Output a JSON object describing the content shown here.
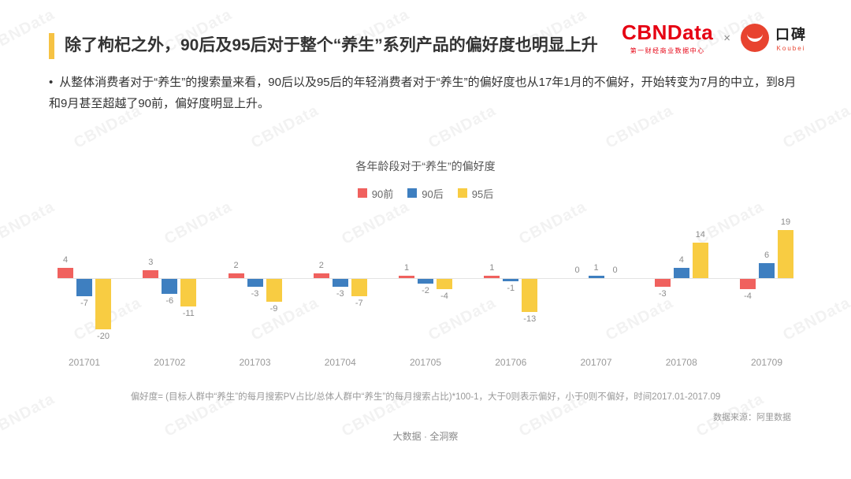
{
  "header": {
    "title": "除了枸杞之外，90后及95后对于整个“养生”系列产品的偏好度也明显上升",
    "brand": {
      "cbndata": "CBNData",
      "cbndata_subtitle": "第一财经商业数据中心",
      "separator": "×",
      "koubei": "口碑",
      "koubei_subtitle": "Koubei"
    }
  },
  "bullet": {
    "marker": "•",
    "text": "从整体消费者对于“养生”的搜索量来看，90后以及95后的年轻消费者对于“养生”的偏好度也从17年1月的不偏好，开始转变为7月的中立，到8月和9月甚至超越了90前，偏好度明显上升。"
  },
  "chart_data": {
    "type": "bar",
    "title": "各年龄段对于“养生”的偏好度",
    "categories": [
      "201701",
      "201702",
      "201703",
      "201704",
      "201705",
      "201706",
      "201707",
      "201708",
      "201709"
    ],
    "series": [
      {
        "name": "90前",
        "color": "#f0615e",
        "values": [
          4,
          3,
          2,
          2,
          1,
          1,
          0,
          -3,
          -4
        ]
      },
      {
        "name": "90后",
        "color": "#3e7fc0",
        "values": [
          -7,
          -6,
          -3,
          -3,
          -2,
          -1,
          1,
          4,
          6
        ]
      },
      {
        "name": "95后",
        "color": "#f8cc42",
        "values": [
          -20,
          -11,
          -9,
          -7,
          -4,
          -13,
          0,
          14,
          19
        ]
      }
    ],
    "ylim": [
      -20,
      19
    ],
    "grid": false,
    "legend_position": "top",
    "value_labels": true
  },
  "footnote": "偏好度= (目标人群中“养生”的每月搜索PV占比/总体人群中“养生”的每月搜索占比)*100-1，大于0则表示偏好，小于0则不偏好，时间2017.01-2017.09",
  "data_source": "数据来源：阿里数据",
  "footer": "大数据 · 全洞察",
  "watermark": "CBNData",
  "colors": {
    "accent_bar": "#f6c243",
    "brand_red": "#e60012",
    "koubei_red": "#e8432f",
    "bar_pre90": "#f0615e",
    "bar_90s": "#3e7fc0",
    "bar_95s": "#f8cc42",
    "baseline": "#e3e3e3"
  }
}
